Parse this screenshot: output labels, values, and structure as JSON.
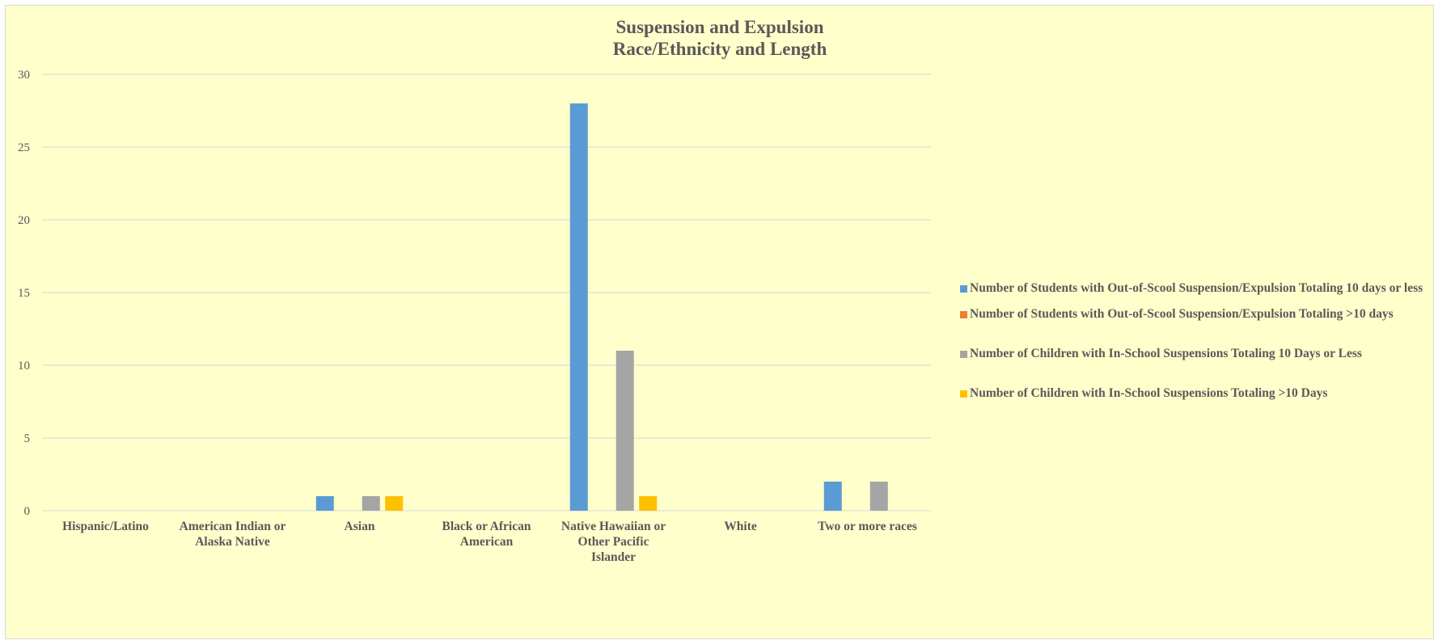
{
  "chart_data": {
    "type": "bar",
    "title": [
      "Suspension and Expulsion",
      "Race/Ethnicity and Length"
    ],
    "xlabel": "",
    "ylabel": "",
    "ylim": [
      0,
      30
    ],
    "yticks": [
      0,
      5,
      10,
      15,
      20,
      25,
      30
    ],
    "grid": true,
    "legend_position": "right",
    "categories": [
      [
        "Hispanic/Latino"
      ],
      [
        "American Indian or",
        "Alaska Native"
      ],
      [
        "Asian"
      ],
      [
        "Black or African",
        "American"
      ],
      [
        "Native Hawaiian or",
        "Other Pacific",
        "Islander"
      ],
      [
        "White"
      ],
      [
        "Two or more races"
      ]
    ],
    "series": [
      {
        "name": "Number of Students with Out-of-Scool Suspension/Expulsion Totaling 10 days or less",
        "color": "#5b9bd5",
        "values": [
          0,
          0,
          1,
          0,
          28,
          0,
          2
        ]
      },
      {
        "name": "Number of Students with Out-of-Scool Suspension/Expulsion Totaling >10 days",
        "color": "#ed7d31",
        "values": [
          0,
          0,
          0,
          0,
          0,
          0,
          0
        ]
      },
      {
        "name": "Number of Children with In-School Suspensions Totaling 10 Days or Less",
        "color": "#a5a5a5",
        "values": [
          0,
          0,
          1,
          0,
          11,
          0,
          2
        ]
      },
      {
        "name": "Number of Children with In-School Suspensions Totaling >10 Days",
        "color": "#ffc000",
        "values": [
          0,
          0,
          1,
          0,
          1,
          0,
          0
        ]
      }
    ]
  }
}
